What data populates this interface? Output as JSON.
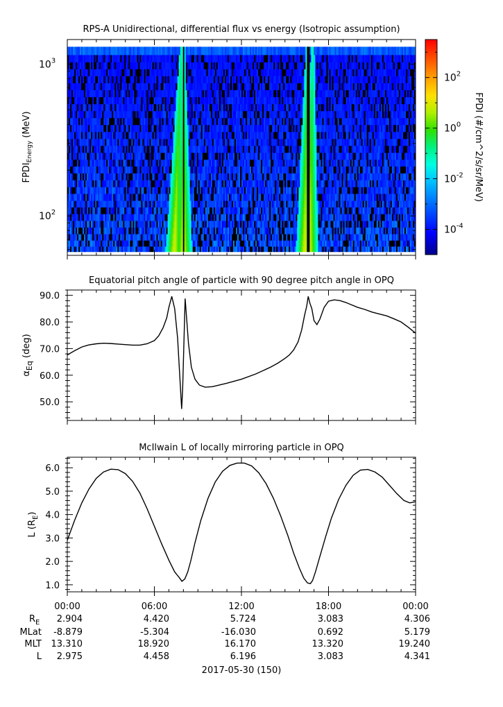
{
  "chart_data": [
    {
      "type": "heatmap",
      "title": "RPS-A Unidirectional, differential flux vs energy (Isotropic assumption)",
      "ylabel": "FPDI",
      "ylabel_sub": "Energy",
      "ylabel_unit": " (MeV)",
      "yscale": "log",
      "ylim": [
        55,
        1450
      ],
      "y_ticks": [
        {
          "value": 100,
          "base": "10",
          "exp": "2"
        },
        {
          "value": 1000,
          "base": "10",
          "exp": "3"
        }
      ],
      "xlim_hours": [
        0,
        24
      ],
      "colorbar": {
        "label": "FPDI (#/cm^2/s/sr/MeV)",
        "scale": "log",
        "range": [
          -5,
          3.5
        ],
        "ticks": [
          {
            "value": 2,
            "base": "10",
            "exp": "2"
          },
          {
            "value": 0,
            "base": "10",
            "exp": "0"
          },
          {
            "value": -2,
            "base": "10",
            "exp": "-2"
          },
          {
            "value": -4,
            "base": "10",
            "exp": "-4"
          }
        ]
      },
      "energy_bins_mev": [
        58,
        63,
        69,
        76,
        84,
        93,
        103,
        114,
        126,
        140,
        155,
        172,
        191,
        212,
        235,
        261,
        290,
        322,
        358,
        398,
        442,
        491,
        546,
        607,
        675,
        750,
        834,
        927,
        1030,
        1150,
        1300
      ],
      "bright_bands": [
        {
          "start_hour": 7.05,
          "end_hour": 8.0,
          "gap_hour": 8.0,
          "log10_flux": 1.0
        },
        {
          "start_hour": 16.25,
          "end_hour": 17.05,
          "gap_hour": 16.6,
          "log10_flux": 1.0
        }
      ],
      "background_log10_flux": [
        -5.0,
        -3.0
      ]
    },
    {
      "type": "line",
      "title": "Equatorial pitch angle of particle with 90 degree pitch angle in OPQ",
      "ylabel": "α",
      "ylabel_sub": "Eq",
      "ylabel_unit": " (deg)",
      "ylim": [
        43,
        92
      ],
      "y_ticks": [
        50,
        60,
        70,
        80,
        90
      ],
      "xlim_hours": [
        0,
        24
      ],
      "x": [
        0,
        0.5,
        1.0,
        1.5,
        2.0,
        2.5,
        3.0,
        3.5,
        4.0,
        4.5,
        5.0,
        5.5,
        6.0,
        6.3,
        6.6,
        6.85,
        7.0,
        7.2,
        7.4,
        7.6,
        7.8,
        7.88,
        7.95,
        8.05,
        8.12,
        8.2,
        8.35,
        8.55,
        8.8,
        9.1,
        9.5,
        10.0,
        11.0,
        12.0,
        13.0,
        14.0,
        14.5,
        15.0,
        15.3,
        15.6,
        15.9,
        16.15,
        16.35,
        16.5,
        16.6,
        16.72,
        16.85,
        17.0,
        17.2,
        17.4,
        17.7,
        18.0,
        18.4,
        18.8,
        19.2,
        19.6,
        20.0,
        20.5,
        21.0,
        21.5,
        22.0,
        22.5,
        23.0,
        23.5,
        24.0
      ],
      "y": [
        67.6,
        69.2,
        70.6,
        71.4,
        71.8,
        72.0,
        71.9,
        71.7,
        71.5,
        71.3,
        71.3,
        71.8,
        73.0,
        74.8,
        77.8,
        81.5,
        85.5,
        89.6,
        85.0,
        74.0,
        55.0,
        47.3,
        55.0,
        75.0,
        88.8,
        83.0,
        72.0,
        63.0,
        58.5,
        56.3,
        55.5,
        55.7,
        57.0,
        58.5,
        60.5,
        63.0,
        64.5,
        66.3,
        67.6,
        69.5,
        72.5,
        77.0,
        82.5,
        86.0,
        89.6,
        87.0,
        85.0,
        80.5,
        79.0,
        81.0,
        85.5,
        87.8,
        88.3,
        88.0,
        87.3,
        86.4,
        85.5,
        84.7,
        83.7,
        83.0,
        82.3,
        81.2,
        80.0,
        78.0,
        75.8
      ]
    },
    {
      "type": "line",
      "title": "McIlwain L of locally mirroring particle in OPQ",
      "ylabel": "L (R",
      "ylabel_sub": "E",
      "ylabel_unit": ")",
      "ylim": [
        0.7,
        6.45
      ],
      "y_ticks": [
        1,
        2,
        3,
        4,
        5,
        6
      ],
      "xlim_hours": [
        0,
        24
      ],
      "x": [
        0,
        0.5,
        1.0,
        1.5,
        2.0,
        2.5,
        3.0,
        3.5,
        4.0,
        4.5,
        5.0,
        5.5,
        6.0,
        6.5,
        7.0,
        7.4,
        7.7,
        7.9,
        8.1,
        8.3,
        8.5,
        8.8,
        9.2,
        9.7,
        10.2,
        10.7,
        11.2,
        11.7,
        12.2,
        12.7,
        13.2,
        13.7,
        14.2,
        14.7,
        15.2,
        15.6,
        16.0,
        16.3,
        16.55,
        16.75,
        16.9,
        17.1,
        17.4,
        17.8,
        18.2,
        18.7,
        19.2,
        19.7,
        20.2,
        20.7,
        21.2,
        21.7,
        22.2,
        22.7,
        23.2,
        23.6,
        24.0
      ],
      "y": [
        2.9,
        3.75,
        4.5,
        5.1,
        5.55,
        5.82,
        5.94,
        5.92,
        5.75,
        5.42,
        4.92,
        4.25,
        3.5,
        2.75,
        2.05,
        1.55,
        1.32,
        1.15,
        1.25,
        1.55,
        2.0,
        2.8,
        3.75,
        4.7,
        5.4,
        5.85,
        6.1,
        6.2,
        6.2,
        6.08,
        5.78,
        5.32,
        4.7,
        3.95,
        3.1,
        2.35,
        1.7,
        1.28,
        1.08,
        1.05,
        1.18,
        1.55,
        2.2,
        3.05,
        3.85,
        4.65,
        5.25,
        5.68,
        5.9,
        5.93,
        5.82,
        5.6,
        5.25,
        4.9,
        4.6,
        4.5,
        4.55
      ]
    }
  ],
  "x_ticks": [
    "00:00",
    "06:00",
    "12:00",
    "18:00",
    "00:00"
  ],
  "ephem_labels": [
    {
      "base": "R",
      "sub": "E"
    },
    {
      "base": "MLat",
      "sub": ""
    },
    {
      "base": "MLT",
      "sub": ""
    },
    {
      "base": "L",
      "sub": ""
    }
  ],
  "ephem_rows": [
    [
      "2.904",
      "4.420",
      "5.724",
      "3.083",
      "4.306"
    ],
    [
      "-8.879",
      "-5.304",
      "-16.030",
      "0.692",
      "5.179"
    ],
    [
      "13.310",
      "18.920",
      "16.170",
      "13.320",
      "19.240"
    ],
    [
      "2.975",
      "4.458",
      "6.196",
      "3.083",
      "4.341"
    ]
  ],
  "date_label": "2017-05-30 (150)"
}
